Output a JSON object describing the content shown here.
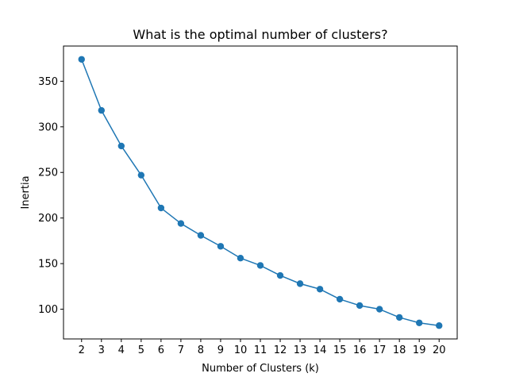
{
  "chart_data": {
    "type": "line",
    "title": "What is the optimal number of clusters?",
    "xlabel": "Number of Clusters (k)",
    "ylabel": "Inertia",
    "x": [
      2,
      3,
      4,
      5,
      6,
      7,
      8,
      9,
      10,
      11,
      12,
      13,
      14,
      15,
      16,
      17,
      18,
      19,
      20
    ],
    "series": [
      {
        "values": [
          374,
          318,
          279,
          247,
          211,
          194,
          181,
          169,
          156,
          148,
          137,
          128,
          122,
          111,
          104,
          100,
          91,
          85,
          82
        ],
        "color": "#1f77b4",
        "marker": "circle"
      }
    ],
    "xlim": [
      1.09,
      20.91
    ],
    "ylim": [
      67.4,
      388.6
    ],
    "x_ticks": [
      2,
      3,
      4,
      5,
      6,
      7,
      8,
      9,
      10,
      11,
      12,
      13,
      14,
      15,
      16,
      17,
      18,
      19,
      20
    ],
    "y_ticks": [
      100,
      150,
      200,
      250,
      300,
      350
    ],
    "grid": false,
    "legend": "none"
  }
}
